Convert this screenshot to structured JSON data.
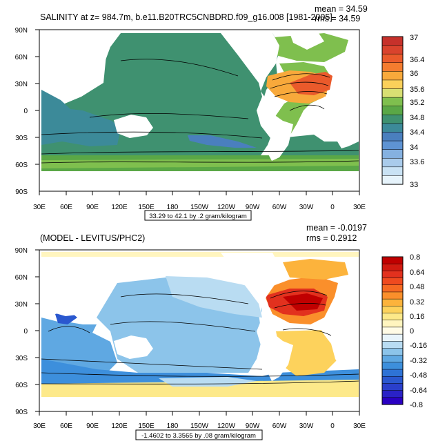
{
  "chart_data": [
    {
      "type": "heatmap",
      "title": "SALINITY at z= 984.7m, b.e11.B20TRC5CNBDRD.f09_g16.008 [1981-2005]",
      "stats": {
        "mean": "mean = 34.59",
        "rms": "rms = 34.59"
      },
      "range_note": "33.29 to 42.1 by .2 gram/kilogram",
      "xticks": [
        "30E",
        "60E",
        "90E",
        "120E",
        "150E",
        "180",
        "150W",
        "120W",
        "90W",
        "60W",
        "30W",
        "0",
        "30E"
      ],
      "yticks": [
        "90N",
        "60N",
        "30N",
        "0",
        "30S",
        "60S",
        "90S"
      ],
      "colorbar": {
        "labels": [
          "37",
          "36.4",
          "36",
          "35.6",
          "35.2",
          "34.8",
          "34.4",
          "34",
          "33.6",
          "33"
        ],
        "colors": [
          "#c6312b",
          "#d9432d",
          "#ea5a2b",
          "#f47c2f",
          "#f8a93b",
          "#fbd05a",
          "#d8df73",
          "#7fbf4e",
          "#5aa746",
          "#3f9170",
          "#3c8a99",
          "#4a7fbe",
          "#5e93d3",
          "#85b1e0",
          "#a9cbeb",
          "#c9e2f4",
          "#e6f3fb"
        ]
      }
    },
    {
      "type": "heatmap",
      "title": "(MODEL - LEVITUS/PHC2)",
      "stats": {
        "mean": "mean = -0.0197",
        "rms": "rms = 0.2912"
      },
      "range_note": "-1.4602 to 3.3565 by .08 gram/kilogram",
      "xticks": [
        "30E",
        "60E",
        "90E",
        "120E",
        "150E",
        "180",
        "150W",
        "120W",
        "90W",
        "60W",
        "30W",
        "0",
        "30E"
      ],
      "yticks": [
        "90N",
        "60N",
        "30N",
        "0",
        "30S",
        "60S",
        "90S"
      ],
      "colorbar": {
        "labels": [
          "0.8",
          "0.64",
          "0.48",
          "0.32",
          "0.16",
          "0",
          "-0.16",
          "-0.32",
          "-0.48",
          "-0.64",
          "-0.8"
        ],
        "colors": [
          "#c00000",
          "#d11a10",
          "#e2311e",
          "#ef4a1f",
          "#f66a22",
          "#fa8f2b",
          "#fcb33c",
          "#fdd25c",
          "#fde98a",
          "#fff5bf",
          "#fffbe6",
          "#e8f4fb",
          "#b9dcf2",
          "#8cc4ea",
          "#5fa8e2",
          "#3d8fdc",
          "#2e73d6",
          "#2a58cf",
          "#2a3fcb",
          "#2a22c6",
          "#2a00c2"
        ]
      }
    }
  ]
}
